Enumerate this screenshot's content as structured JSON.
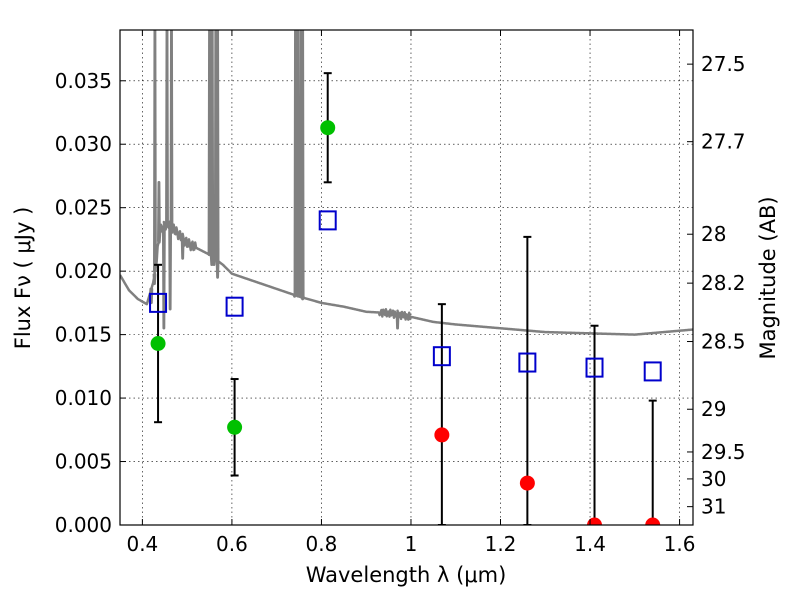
{
  "chart_data": {
    "type": "scatter",
    "xlabel": "Wavelength  λ (μm)",
    "ylabel": "Flux  Fν  ( μJy )",
    "y2label": "Magnitude (AB)",
    "xlim": [
      0.35,
      1.63
    ],
    "ylim": [
      0.0,
      0.039
    ],
    "grid": true,
    "x_ticks": [
      0.4,
      0.6,
      0.8,
      1,
      1.2,
      1.4,
      1.6
    ],
    "x_tick_labels": [
      "0.4",
      "0.6",
      "0.8",
      "1",
      "1.2",
      "1.4",
      "1.6"
    ],
    "y_ticks": [
      0.0,
      0.005,
      0.01,
      0.015,
      0.02,
      0.025,
      0.03,
      0.035
    ],
    "y_tick_labels": [
      "0.000",
      "0.005",
      "0.010",
      "0.015",
      "0.020",
      "0.025",
      "0.030",
      "0.035"
    ],
    "y2_ticks": [
      {
        "mag": 27.5,
        "label": "27.5"
      },
      {
        "mag": 27.7,
        "label": "27.7"
      },
      {
        "mag": 28.0,
        "label": "28"
      },
      {
        "mag": 28.2,
        "label": "28.2"
      },
      {
        "mag": 28.5,
        "label": "28.5"
      },
      {
        "mag": 29.0,
        "label": "29"
      },
      {
        "mag": 29.5,
        "label": "29.5"
      },
      {
        "mag": 30.0,
        "label": "30"
      },
      {
        "mag": 31.0,
        "label": "31"
      }
    ],
    "colors": {
      "detections": "#00c000",
      "upper_limits": "#ff0000",
      "model_photometry": "#0000cc",
      "template": "#808080",
      "errorbar": "#000000"
    },
    "detections": [
      {
        "x": 0.435,
        "y": 0.0143,
        "err": 0.0062
      },
      {
        "x": 0.606,
        "y": 0.0077,
        "err": 0.0038
      },
      {
        "x": 0.814,
        "y": 0.0313,
        "err": 0.0043
      }
    ],
    "upper_limits": [
      {
        "x": 1.069,
        "y": 0.0071,
        "yerr_low": 0.0071,
        "yerr_high": 0.0103
      },
      {
        "x": 1.26,
        "y": 0.0033,
        "yerr_low": 0.0033,
        "yerr_high": 0.0194
      },
      {
        "x": 1.41,
        "y": 0.0,
        "yerr_low": 0.0,
        "yerr_high": 0.0157
      },
      {
        "x": 1.54,
        "y": 0.0,
        "yerr_low": 0.0,
        "yerr_high": 0.0098
      }
    ],
    "model_photometry": [
      {
        "x": 0.435,
        "y": 0.0175
      },
      {
        "x": 0.606,
        "y": 0.0172
      },
      {
        "x": 0.814,
        "y": 0.024
      },
      {
        "x": 1.069,
        "y": 0.0133
      },
      {
        "x": 1.26,
        "y": 0.0128
      },
      {
        "x": 1.41,
        "y": 0.0124
      },
      {
        "x": 1.54,
        "y": 0.0121
      }
    ],
    "template": {
      "x": [
        0.35,
        0.37,
        0.39,
        0.41,
        0.425,
        0.44,
        0.455,
        0.47,
        0.5,
        0.55,
        0.58,
        0.6,
        0.65,
        0.7,
        0.75,
        0.8,
        0.85,
        0.9,
        0.95,
        1.0,
        1.05,
        1.1,
        1.2,
        1.3,
        1.4,
        1.5,
        1.63
      ],
      "y": [
        0.0197,
        0.0185,
        0.0178,
        0.0174,
        0.0192,
        0.0232,
        0.0238,
        0.0233,
        0.0222,
        0.0213,
        0.0205,
        0.0198,
        0.0192,
        0.0186,
        0.018,
        0.0175,
        0.0172,
        0.0168,
        0.0167,
        0.0164,
        0.016,
        0.0158,
        0.0155,
        0.0152,
        0.0151,
        0.015,
        0.0154
      ]
    },
    "absorption_lines": [
      {
        "x": 0.42,
        "depth": 0.0175
      },
      {
        "x": 0.427,
        "depth": 0.019
      },
      {
        "x": 0.448,
        "depth": 0.0155
      },
      {
        "x": 0.462,
        "depth": 0.017
      },
      {
        "x": 0.49,
        "depth": 0.021
      },
      {
        "x": 0.555,
        "depth": 0.0205
      },
      {
        "x": 0.56,
        "depth": 0.0205
      },
      {
        "x": 0.568,
        "depth": 0.0195
      },
      {
        "x": 0.74,
        "depth": 0.018
      },
      {
        "x": 0.758,
        "depth": 0.0178
      },
      {
        "x": 0.76,
        "depth": 0.0179
      },
      {
        "x": 0.97,
        "depth": 0.0155
      }
    ],
    "emission_lines": [
      {
        "x": 0.428,
        "peak": 0.0395
      },
      {
        "x": 0.437,
        "peak": 0.027
      },
      {
        "x": 0.455,
        "peak": 0.0395
      },
      {
        "x": 0.465,
        "peak": 0.0395
      },
      {
        "x": 0.55,
        "peak": 0.0395
      },
      {
        "x": 0.556,
        "peak": 0.0395
      },
      {
        "x": 0.564,
        "peak": 0.0395
      },
      {
        "x": 0.568,
        "peak": 0.0395
      },
      {
        "x": 0.742,
        "peak": 0.0395
      },
      {
        "x": 0.748,
        "peak": 0.0395
      },
      {
        "x": 0.755,
        "peak": 0.0395
      },
      {
        "x": 0.758,
        "peak": 0.0395
      }
    ]
  }
}
